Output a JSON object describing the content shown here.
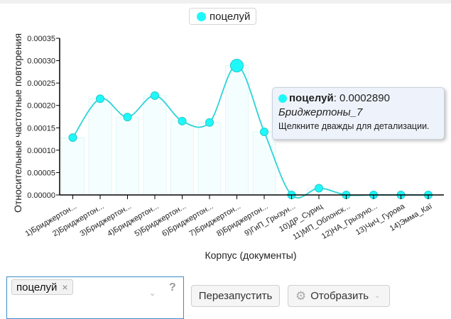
{
  "legend": {
    "label": "поцелуй",
    "color": "#1ef8f8"
  },
  "chart_data": {
    "type": "line",
    "series": [
      {
        "name": "поцелуй",
        "values": [
          0.000128,
          0.000215,
          0.000174,
          0.000222,
          0.000165,
          0.000162,
          0.000289,
          0.000141,
          0,
          1.5e-05,
          0,
          0,
          0,
          0
        ]
      }
    ],
    "categories": [
      "1)Бриджертон...",
      "2)Бриджертон...",
      "3)Бриджертон...",
      "4)Бриджертон...",
      "5)Бриджертон...",
      "6)Бриджертон...",
      "7)Бриджертон...",
      "8)Бриджертон...",
      "9)ГиП_Грызун...",
      "10)ДР_Суриц",
      "11)МП_Облонск...",
      "12)НА_Грызуно...",
      "13)ЧиЧ_Гурова",
      "14)Эмма_Каї"
    ],
    "xlabel": "Корпус (документы)",
    "ylabel": "Относительные частотные повторения",
    "yticks": [
      "0.00000",
      "0.00005",
      "0.00010",
      "0.00015",
      "0.00020",
      "0.00025",
      "0.00030",
      "0.00035"
    ],
    "ylim": [
      0,
      0.00035
    ],
    "highlighted_index": 6,
    "color": "#1ef8f8",
    "line_color": "#2fd3d8"
  },
  "tooltip": {
    "term": "поцелуй",
    "value": ": 0.0002890",
    "document": "Бриджертоны_7",
    "hint": "Щелкните дважды для детализации."
  },
  "controls": {
    "term_tag": "поцелуй",
    "remove_icon": "×",
    "dropdown_icon": "⌄",
    "help_icon": "?",
    "restart_label": "Перезапустить",
    "display_label": "Отобразить",
    "gear_icon": "⚙",
    "display_chevron": "⌄"
  }
}
